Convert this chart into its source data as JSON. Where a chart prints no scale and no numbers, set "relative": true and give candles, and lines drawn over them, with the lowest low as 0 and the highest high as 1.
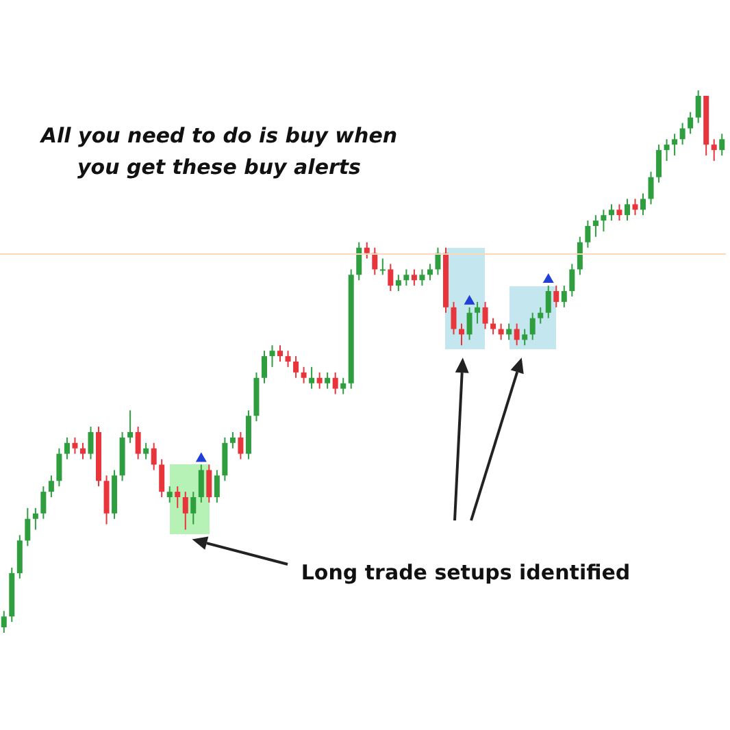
{
  "chart_data": {
    "type": "candlestick",
    "relative": true,
    "categories": [
      null,
      null,
      null,
      null,
      null,
      null,
      null,
      null,
      null,
      null,
      null,
      null,
      null,
      null,
      null,
      null,
      null,
      null,
      null,
      null,
      null,
      null,
      null,
      null,
      null,
      null,
      null,
      null,
      null,
      null,
      null,
      null,
      null,
      null,
      null,
      null,
      null,
      null,
      null,
      null,
      null,
      null,
      null,
      null,
      null,
      null,
      null,
      null,
      null,
      null,
      null,
      null,
      null,
      null,
      null,
      null,
      null,
      null,
      null,
      null,
      null,
      null,
      null,
      null,
      null,
      null,
      null,
      null,
      null,
      null,
      null,
      null,
      null,
      null,
      null,
      null,
      null,
      null,
      null,
      null,
      null,
      null,
      null,
      null,
      null,
      null,
      null,
      null,
      null,
      null,
      null,
      null
    ],
    "ohlc": [
      [
        0.01,
        0.04,
        0,
        0.03
      ],
      [
        0.03,
        0.12,
        0.02,
        0.11
      ],
      [
        0.11,
        0.18,
        0.1,
        0.17
      ],
      [
        0.17,
        0.23,
        0.16,
        0.21
      ],
      [
        0.21,
        0.23,
        0.19,
        0.22
      ],
      [
        0.22,
        0.27,
        0.21,
        0.26
      ],
      [
        0.26,
        0.29,
        0.25,
        0.28
      ],
      [
        0.28,
        0.34,
        0.27,
        0.33
      ],
      [
        0.33,
        0.36,
        0.32,
        0.35
      ],
      [
        0.35,
        0.36,
        0.33,
        0.34
      ],
      [
        0.34,
        0.35,
        0.32,
        0.33
      ],
      [
        0.33,
        0.38,
        0.32,
        0.37
      ],
      [
        0.37,
        0.38,
        0.27,
        0.28
      ],
      [
        0.28,
        0.29,
        0.2,
        0.22
      ],
      [
        0.22,
        0.3,
        0.21,
        0.29
      ],
      [
        0.29,
        0.37,
        0.28,
        0.36
      ],
      [
        0.36,
        0.41,
        0.35,
        0.37
      ],
      [
        0.37,
        0.38,
        0.32,
        0.33
      ],
      [
        0.33,
        0.35,
        0.32,
        0.34
      ],
      [
        0.34,
        0.35,
        0.3,
        0.31
      ],
      [
        0.31,
        0.32,
        0.25,
        0.26
      ],
      [
        0.25,
        0.27,
        0.24,
        0.26
      ],
      [
        0.26,
        0.27,
        0.23,
        0.25
      ],
      [
        0.25,
        0.26,
        0.19,
        0.22
      ],
      [
        0.22,
        0.26,
        0.2,
        0.25
      ],
      [
        0.25,
        0.31,
        0.24,
        0.3
      ],
      [
        0.3,
        0.31,
        0.24,
        0.25
      ],
      [
        0.25,
        0.3,
        0.24,
        0.29
      ],
      [
        0.29,
        0.36,
        0.28,
        0.35
      ],
      [
        0.35,
        0.37,
        0.34,
        0.36
      ],
      [
        0.36,
        0.37,
        0.32,
        0.33
      ],
      [
        0.33,
        0.41,
        0.32,
        0.4
      ],
      [
        0.4,
        0.48,
        0.39,
        0.47
      ],
      [
        0.47,
        0.52,
        0.46,
        0.51
      ],
      [
        0.51,
        0.53,
        0.49,
        0.52
      ],
      [
        0.52,
        0.53,
        0.5,
        0.51
      ],
      [
        0.51,
        0.52,
        0.49,
        0.5
      ],
      [
        0.5,
        0.51,
        0.47,
        0.48
      ],
      [
        0.48,
        0.49,
        0.46,
        0.47
      ],
      [
        0.46,
        0.49,
        0.45,
        0.47
      ],
      [
        0.47,
        0.48,
        0.45,
        0.46
      ],
      [
        0.46,
        0.48,
        0.45,
        0.47
      ],
      [
        0.47,
        0.48,
        0.44,
        0.45
      ],
      [
        0.45,
        0.47,
        0.44,
        0.46
      ],
      [
        0.46,
        0.67,
        0.45,
        0.66
      ],
      [
        0.66,
        0.72,
        0.65,
        0.71
      ],
      [
        0.71,
        0.72,
        0.69,
        0.7
      ],
      [
        0.7,
        0.71,
        0.66,
        0.67
      ],
      [
        0.67,
        0.69,
        0.66,
        0.67
      ],
      [
        0.67,
        0.68,
        0.63,
        0.64
      ],
      [
        0.64,
        0.66,
        0.63,
        0.65
      ],
      [
        0.65,
        0.67,
        0.64,
        0.66
      ],
      [
        0.66,
        0.67,
        0.64,
        0.65
      ],
      [
        0.65,
        0.67,
        0.64,
        0.66
      ],
      [
        0.66,
        0.68,
        0.65,
        0.67
      ],
      [
        0.67,
        0.71,
        0.66,
        0.7
      ],
      [
        0.7,
        0.71,
        0.59,
        0.6
      ],
      [
        0.6,
        0.61,
        0.55,
        0.56
      ],
      [
        0.56,
        0.57,
        0.53,
        0.55
      ],
      [
        0.55,
        0.6,
        0.54,
        0.59
      ],
      [
        0.59,
        0.61,
        0.57,
        0.6
      ],
      [
        0.6,
        0.61,
        0.56,
        0.57
      ],
      [
        0.57,
        0.58,
        0.55,
        0.56
      ],
      [
        0.56,
        0.57,
        0.54,
        0.55
      ],
      [
        0.55,
        0.57,
        0.54,
        0.56
      ],
      [
        0.56,
        0.57,
        0.53,
        0.54
      ],
      [
        0.54,
        0.56,
        0.53,
        0.55
      ],
      [
        0.55,
        0.59,
        0.54,
        0.58
      ],
      [
        0.58,
        0.6,
        0.57,
        0.59
      ],
      [
        0.59,
        0.64,
        0.58,
        0.63
      ],
      [
        0.63,
        0.64,
        0.6,
        0.61
      ],
      [
        0.61,
        0.64,
        0.6,
        0.63
      ],
      [
        0.63,
        0.68,
        0.62,
        0.67
      ],
      [
        0.67,
        0.73,
        0.66,
        0.72
      ],
      [
        0.72,
        0.76,
        0.71,
        0.75
      ],
      [
        0.75,
        0.77,
        0.73,
        0.76
      ],
      [
        0.76,
        0.78,
        0.74,
        0.77
      ],
      [
        0.77,
        0.79,
        0.76,
        0.78
      ],
      [
        0.78,
        0.79,
        0.76,
        0.77
      ],
      [
        0.77,
        0.8,
        0.76,
        0.79
      ],
      [
        0.79,
        0.8,
        0.77,
        0.78
      ],
      [
        0.78,
        0.81,
        0.77,
        0.8
      ],
      [
        0.8,
        0.85,
        0.79,
        0.84
      ],
      [
        0.84,
        0.9,
        0.83,
        0.89
      ],
      [
        0.89,
        0.91,
        0.87,
        0.9
      ],
      [
        0.9,
        0.92,
        0.88,
        0.91
      ],
      [
        0.91,
        0.94,
        0.9,
        0.93
      ],
      [
        0.93,
        0.96,
        0.92,
        0.95
      ],
      [
        0.95,
        1,
        0.94,
        0.99
      ],
      [
        0.99,
        0.99,
        0.88,
        0.9
      ],
      [
        0.9,
        0.91,
        0.87,
        0.89
      ],
      [
        0.89,
        0.92,
        0.88,
        0.91
      ]
    ],
    "colors": [
      "#2e9e3e",
      "#2e9e3e",
      "#2e9e3e",
      "#2e9e3e",
      "#2e9e3e",
      "#2e9e3e",
      "#2e9e3e",
      "#2e9e3e",
      "#2e9e3e",
      "#e8353b",
      "#e8353b",
      "#2e9e3e",
      "#e8353b",
      "#e8353b",
      "#2e9e3e",
      "#2e9e3e",
      "#2e9e3e",
      "#e8353b",
      "#2e9e3e",
      "#e8353b",
      "#e8353b",
      "#2e9e3e",
      "#e8353b",
      "#e8353b",
      "#2e9e3e",
      "#2e9e3e",
      "#e8353b",
      "#2e9e3e",
      "#2e9e3e",
      "#2e9e3e",
      "#e8353b",
      "#2e9e3e",
      "#2e9e3e",
      "#2e9e3e",
      "#2e9e3e",
      "#e8353b",
      "#e8353b",
      "#e8353b",
      "#e8353b",
      "#2e9e3e",
      "#e8353b",
      "#2e9e3e",
      "#e8353b",
      "#2e9e3e",
      "#2e9e3e",
      "#2e9e3e",
      "#e8353b",
      "#e8353b",
      "#2e9e3e",
      "#e8353b",
      "#2e9e3e",
      "#2e9e3e",
      "#e8353b",
      "#2e9e3e",
      "#2e9e3e",
      "#2e9e3e",
      "#e8353b",
      "#e8353b",
      "#e8353b",
      "#2e9e3e",
      "#2e9e3e",
      "#e8353b",
      "#e8353b",
      "#e8353b",
      "#2e9e3e",
      "#e8353b",
      "#2e9e3e",
      "#2e9e3e",
      "#2e9e3e",
      "#2e9e3e",
      "#e8353b",
      "#2e9e3e",
      "#2e9e3e",
      "#2e9e3e",
      "#2e9e3e",
      "#2e9e3e",
      "#2e9e3e",
      "#2e9e3e",
      "#e8353b",
      "#2e9e3e",
      "#e8353b",
      "#2e9e3e",
      "#2e9e3e",
      "#2e9e3e",
      "#2e9e3e",
      "#2e9e3e",
      "#2e9e3e",
      "#2e9e3e",
      "#2e9e3e",
      "#e8353b",
      "#e8353b",
      "#2e9e3e"
    ],
    "ref_lines": [
      {
        "axis": "y",
        "value": 0.7,
        "color": "#fbd9b8"
      }
    ],
    "annotations": [
      "All you need to do is buy when you get these buy alerts",
      "Long trade setups identified"
    ]
  }
}
